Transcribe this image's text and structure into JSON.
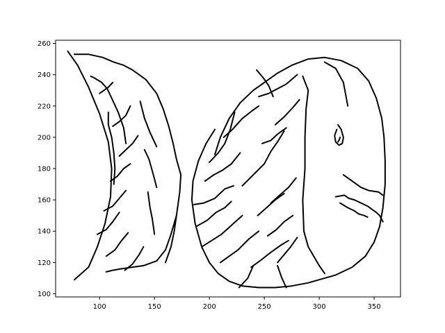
{
  "colors": {
    "stroke": "#000000",
    "background": "#ffffff"
  },
  "chart_data": {
    "type": "line",
    "title": "",
    "xlabel": "",
    "ylabel": "",
    "xlim": [
      60,
      374
    ],
    "ylim": [
      98,
      262
    ],
    "grid": false,
    "legend": "none",
    "x_ticks": [
      100,
      150,
      200,
      250,
      300,
      350
    ],
    "y_ticks": [
      100,
      120,
      140,
      160,
      180,
      200,
      220,
      240,
      260
    ],
    "strokes": [
      [
        [
          71,
          255
        ],
        [
          80,
          246
        ],
        [
          90,
          232
        ],
        [
          100,
          215
        ],
        [
          108,
          197
        ],
        [
          111,
          180
        ],
        [
          110,
          162
        ],
        [
          105,
          145
        ],
        [
          98,
          130
        ],
        [
          90,
          117
        ],
        [
          77,
          109
        ]
      ],
      [
        [
          77,
          253
        ],
        [
          90,
          253
        ],
        [
          103,
          251
        ],
        [
          113,
          248
        ],
        [
          122,
          246
        ],
        [
          130,
          243
        ],
        [
          142,
          237
        ],
        [
          152,
          228
        ],
        [
          158,
          218
        ],
        [
          163,
          207
        ],
        [
          167,
          196
        ],
        [
          170,
          186
        ],
        [
          174,
          176
        ],
        [
          173,
          165
        ],
        [
          170,
          150
        ],
        [
          165,
          138
        ],
        [
          160,
          128
        ],
        [
          152,
          121
        ],
        [
          140,
          118
        ],
        [
          120,
          116
        ],
        [
          112,
          115
        ],
        [
          106,
          114
        ]
      ],
      [
        [
          92,
          239
        ],
        [
          95,
          238
        ],
        [
          102,
          235
        ],
        [
          107,
          231
        ],
        [
          111,
          225
        ],
        [
          117,
          216
        ],
        [
          122,
          206
        ],
        [
          124,
          196
        ]
      ],
      [
        [
          108,
          216
        ],
        [
          108,
          208
        ],
        [
          111,
          200
        ],
        [
          113,
          190
        ],
        [
          114,
          180
        ],
        [
          113,
          170
        ]
      ],
      [
        [
          205,
          189
        ],
        [
          210,
          200
        ],
        [
          218,
          212
        ],
        [
          228,
          222
        ],
        [
          240,
          230
        ],
        [
          252,
          236
        ],
        [
          262,
          241
        ],
        [
          275,
          246
        ],
        [
          290,
          250
        ],
        [
          305,
          251
        ],
        [
          320,
          249
        ],
        [
          335,
          244
        ],
        [
          345,
          236
        ],
        [
          352,
          225
        ],
        [
          357,
          212
        ],
        [
          359,
          200
        ],
        [
          360,
          185
        ],
        [
          360,
          170
        ],
        [
          358,
          155
        ],
        [
          355,
          143
        ],
        [
          350,
          133
        ],
        [
          342,
          124
        ],
        [
          330,
          117
        ],
        [
          315,
          112
        ],
        [
          300,
          109
        ],
        [
          290,
          107
        ],
        [
          275,
          105
        ],
        [
          260,
          104
        ],
        [
          245,
          104
        ],
        [
          230,
          105
        ],
        [
          218,
          108
        ],
        [
          208,
          113
        ],
        [
          200,
          120
        ],
        [
          193,
          130
        ],
        [
          187,
          145
        ],
        [
          184,
          160
        ],
        [
          185,
          172
        ],
        [
          190,
          185
        ],
        [
          197,
          196
        ],
        [
          205,
          205
        ]
      ],
      [
        [
          285,
          239
        ],
        [
          290,
          230
        ],
        [
          288,
          218
        ],
        [
          287,
          200
        ],
        [
          287,
          180
        ],
        [
          285,
          160
        ],
        [
          286,
          140
        ],
        [
          290,
          130
        ],
        [
          300,
          118
        ],
        [
          305,
          113
        ]
      ],
      [
        [
          305,
          248
        ],
        [
          315,
          244
        ],
        [
          322,
          235
        ],
        [
          326,
          220
        ]
      ],
      [
        [
          317,
          208
        ],
        [
          320,
          205
        ],
        [
          322,
          200
        ],
        [
          321,
          196
        ],
        [
          318,
          195
        ],
        [
          315,
          197
        ],
        [
          314,
          201
        ],
        [
          316,
          205
        ]
      ],
      [
        [
          319,
          200
        ],
        [
          318,
          198
        ],
        [
          317,
          197
        ]
      ],
      [
        [
          322,
          176
        ],
        [
          330,
          172
        ],
        [
          338,
          168
        ],
        [
          345,
          166
        ],
        [
          354,
          165
        ],
        [
          358,
          163
        ]
      ],
      [
        [
          315,
          162
        ],
        [
          323,
          163
        ],
        [
          327,
          161
        ],
        [
          332,
          160
        ],
        [
          338,
          158
        ],
        [
          344,
          156
        ],
        [
          348,
          154
        ],
        [
          352,
          152
        ],
        [
          355,
          150
        ],
        [
          358,
          146
        ]
      ],
      [
        [
          319,
          158
        ],
        [
          326,
          155
        ],
        [
          332,
          153
        ],
        [
          336,
          151
        ],
        [
          341,
          150
        ],
        [
          344,
          149
        ]
      ],
      [
        [
          213,
          200
        ],
        [
          221,
          205
        ],
        [
          230,
          212
        ],
        [
          239,
          217
        ],
        [
          245,
          220
        ]
      ],
      [
        [
          200,
          184
        ],
        [
          208,
          190
        ],
        [
          214,
          196
        ],
        [
          219,
          205
        ],
        [
          223,
          216
        ]
      ],
      [
        [
          230,
          169
        ],
        [
          240,
          176
        ],
        [
          250,
          183
        ],
        [
          256,
          191
        ],
        [
          262,
          197
        ],
        [
          268,
          204
        ]
      ],
      [
        [
          196,
          172
        ],
        [
          204,
          176
        ],
        [
          212,
          179
        ],
        [
          220,
          183
        ],
        [
          228,
          190
        ]
      ],
      [
        [
          186,
          157
        ],
        [
          195,
          158
        ],
        [
          205,
          161
        ],
        [
          214,
          167
        ],
        [
          222,
          169
        ]
      ],
      [
        [
          188,
          143
        ],
        [
          198,
          147
        ],
        [
          206,
          152
        ],
        [
          214,
          155
        ],
        [
          220,
          159
        ]
      ],
      [
        [
          193,
          130
        ],
        [
          202,
          134
        ],
        [
          211,
          138
        ],
        [
          222,
          145
        ],
        [
          230,
          150
        ]
      ],
      [
        [
          210,
          120
        ],
        [
          218,
          124
        ],
        [
          226,
          128
        ],
        [
          236,
          135
        ],
        [
          245,
          140
        ]
      ],
      [
        [
          238,
          117
        ],
        [
          246,
          121
        ],
        [
          255,
          126
        ],
        [
          265,
          131
        ],
        [
          272,
          134
        ]
      ],
      [
        [
          262,
          120
        ],
        [
          268,
          125
        ],
        [
          274,
          130
        ],
        [
          280,
          136
        ]
      ],
      [
        [
          245,
          226
        ],
        [
          254,
          228
        ],
        [
          262,
          231
        ],
        [
          270,
          234
        ],
        [
          280,
          240
        ]
      ],
      [
        [
          260,
          208
        ],
        [
          268,
          213
        ],
        [
          276,
          219
        ],
        [
          282,
          224
        ]
      ],
      [
        [
          248,
          196
        ],
        [
          256,
          198
        ],
        [
          262,
          202
        ],
        [
          270,
          206
        ]
      ],
      [
        [
          256,
          158
        ],
        [
          264,
          163
        ],
        [
          272,
          168
        ],
        [
          279,
          174
        ]
      ],
      [
        [
          244,
          150
        ],
        [
          252,
          155
        ],
        [
          260,
          160
        ],
        [
          268,
          164
        ]
      ],
      [
        [
          253,
          137
        ],
        [
          261,
          141
        ],
        [
          268,
          146
        ],
        [
          276,
          150
        ]
      ],
      [
        [
          100,
          228
        ],
        [
          104,
          230
        ],
        [
          108,
          232
        ],
        [
          112,
          235
        ]
      ],
      [
        [
          112,
          207
        ],
        [
          118,
          210
        ],
        [
          124,
          214
        ],
        [
          128,
          220
        ]
      ],
      [
        [
          118,
          188
        ],
        [
          124,
          192
        ],
        [
          130,
          196
        ],
        [
          135,
          201
        ]
      ],
      [
        [
          110,
          172
        ],
        [
          116,
          175
        ],
        [
          122,
          180
        ],
        [
          128,
          183
        ]
      ],
      [
        [
          104,
          153
        ],
        [
          112,
          156
        ],
        [
          118,
          161
        ],
        [
          124,
          166
        ]
      ],
      [
        [
          98,
          138
        ],
        [
          106,
          141
        ],
        [
          112,
          146
        ],
        [
          118,
          152
        ]
      ],
      [
        [
          106,
          124
        ],
        [
          114,
          128
        ],
        [
          120,
          134
        ],
        [
          126,
          139
        ]
      ],
      [
        [
          123,
          115
        ],
        [
          130,
          119
        ],
        [
          136,
          125
        ],
        [
          140,
          130
        ]
      ],
      [
        [
          137,
          223
        ],
        [
          141,
          212
        ],
        [
          146,
          203
        ],
        [
          152,
          194
        ]
      ],
      [
        [
          141,
          192
        ],
        [
          145,
          186
        ],
        [
          149,
          176
        ],
        [
          152,
          168
        ]
      ],
      [
        [
          144,
          165
        ],
        [
          146,
          155
        ],
        [
          148,
          148
        ],
        [
          150,
          138
        ]
      ],
      [
        [
          160,
          120
        ],
        [
          165,
          130
        ],
        [
          168,
          140
        ],
        [
          170,
          150
        ]
      ],
      [
        [
          262,
          118
        ],
        [
          266,
          110
        ],
        [
          270,
          104
        ]
      ],
      [
        [
          227,
          104
        ],
        [
          235,
          110
        ],
        [
          240,
          118
        ]
      ],
      [
        [
          243,
          243
        ],
        [
          249,
          238
        ],
        [
          254,
          233
        ],
        [
          258,
          226
        ]
      ]
    ]
  }
}
